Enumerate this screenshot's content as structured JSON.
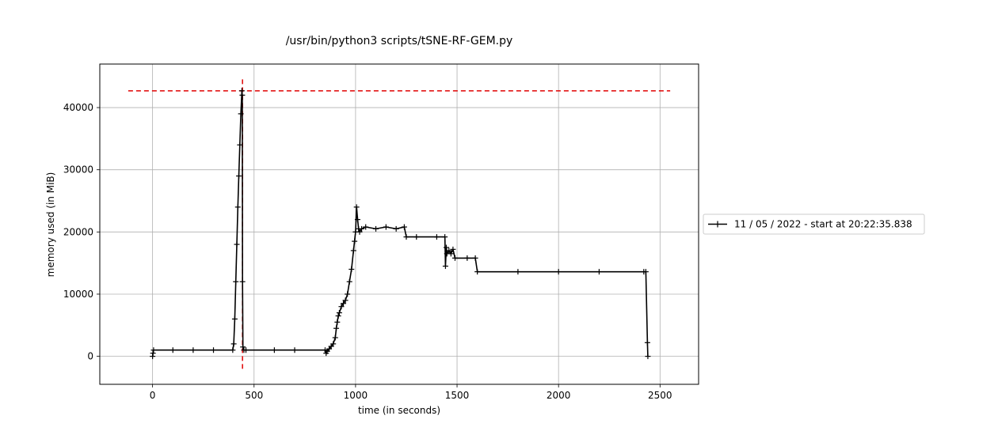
{
  "chart_data": {
    "type": "line",
    "title": "/usr/bin/python3 scripts/tSNE-RF-GEM.py",
    "xlabel": "time (in seconds)",
    "ylabel": "memory used (in MiB)",
    "xlim": [
      -260,
      2690
    ],
    "ylim": [
      -4500,
      47000
    ],
    "xticks": [
      0,
      500,
      1000,
      1500,
      2000,
      2500
    ],
    "yticks": [
      0,
      10000,
      20000,
      30000,
      40000
    ],
    "xtick_labels": [
      "0",
      "500",
      "1000",
      "1500",
      "2000",
      "2500"
    ],
    "ytick_labels": [
      "0",
      "10000",
      "20000",
      "30000",
      "40000"
    ],
    "grid": true,
    "legend_position": "right, outside axes",
    "series": [
      {
        "name": "11 / 05 / 2022 - start at 20:22:35.838",
        "color": "#000000",
        "marker": "+",
        "x": [
          0,
          2,
          5,
          100,
          200,
          300,
          395,
          400,
          405,
          410,
          415,
          420,
          425,
          430,
          435,
          440,
          442,
          443,
          445,
          450,
          460,
          600,
          700,
          850,
          855,
          860,
          870,
          880,
          890,
          900,
          905,
          910,
          915,
          920,
          930,
          940,
          950,
          960,
          970,
          980,
          990,
          995,
          1000,
          1005,
          1010,
          1015,
          1020,
          1030,
          1050,
          1100,
          1150,
          1200,
          1240,
          1250,
          1300,
          1400,
          1440,
          1443,
          1447,
          1450,
          1460,
          1470,
          1480,
          1490,
          1550,
          1590,
          1600,
          1800,
          2000,
          2200,
          2420,
          2430,
          2438,
          2440
        ],
        "y": [
          0,
          500,
          1000,
          1000,
          1000,
          1000,
          1000,
          2000,
          6000,
          12000,
          18000,
          24000,
          29000,
          34000,
          39000,
          42700,
          42000,
          12000,
          1500,
          1000,
          1000,
          1000,
          1000,
          1000,
          500,
          800,
          1200,
          1600,
          2000,
          3000,
          4500,
          5500,
          6500,
          7000,
          8000,
          8500,
          9000,
          10000,
          12000,
          14000,
          17000,
          18500,
          20000,
          24000,
          22000,
          20500,
          20000,
          20500,
          20800,
          20500,
          20800,
          20500,
          20800,
          19200,
          19200,
          19200,
          19200,
          14500,
          17500,
          16500,
          17000,
          16500,
          17200,
          15800,
          15800,
          15800,
          13600,
          13600,
          13600,
          13600,
          13600,
          13600,
          2200,
          0
        ]
      }
    ],
    "reference_lines": {
      "color": "#e00000",
      "style": "dashed",
      "vertical_x": 443,
      "vertical_y_range": [
        -2000,
        45000
      ],
      "horizontal_y": 42700,
      "horizontal_x_range": [
        -120,
        2550
      ]
    }
  }
}
